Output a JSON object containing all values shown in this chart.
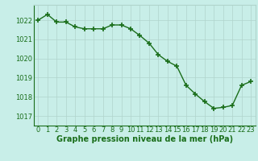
{
  "x": [
    0,
    1,
    2,
    3,
    4,
    5,
    6,
    7,
    8,
    9,
    10,
    11,
    12,
    13,
    14,
    15,
    16,
    17,
    18,
    19,
    20,
    21,
    22,
    23
  ],
  "y": [
    1022.0,
    1022.3,
    1021.9,
    1021.9,
    1021.65,
    1021.55,
    1021.55,
    1021.55,
    1021.75,
    1021.75,
    1021.55,
    1021.2,
    1020.8,
    1020.2,
    1019.85,
    1019.6,
    1018.6,
    1018.15,
    1017.75,
    1017.4,
    1017.45,
    1017.55,
    1018.6,
    1018.8
  ],
  "xlim": [
    -0.5,
    23.5
  ],
  "ylim": [
    1016.5,
    1022.8
  ],
  "yticks": [
    1017,
    1018,
    1019,
    1020,
    1021,
    1022
  ],
  "xticks": [
    0,
    1,
    2,
    3,
    4,
    5,
    6,
    7,
    8,
    9,
    10,
    11,
    12,
    13,
    14,
    15,
    16,
    17,
    18,
    19,
    20,
    21,
    22,
    23
  ],
  "xlabel": "Graphe pression niveau de la mer (hPa)",
  "line_color": "#1a6e1a",
  "marker_color": "#1a6e1a",
  "bg_color": "#c8eee8",
  "grid_color": "#b0d4cc",
  "text_color": "#1a6e1a",
  "xlabel_fontsize": 7,
  "tick_fontsize": 6,
  "line_width": 1.0,
  "marker_size": 4
}
